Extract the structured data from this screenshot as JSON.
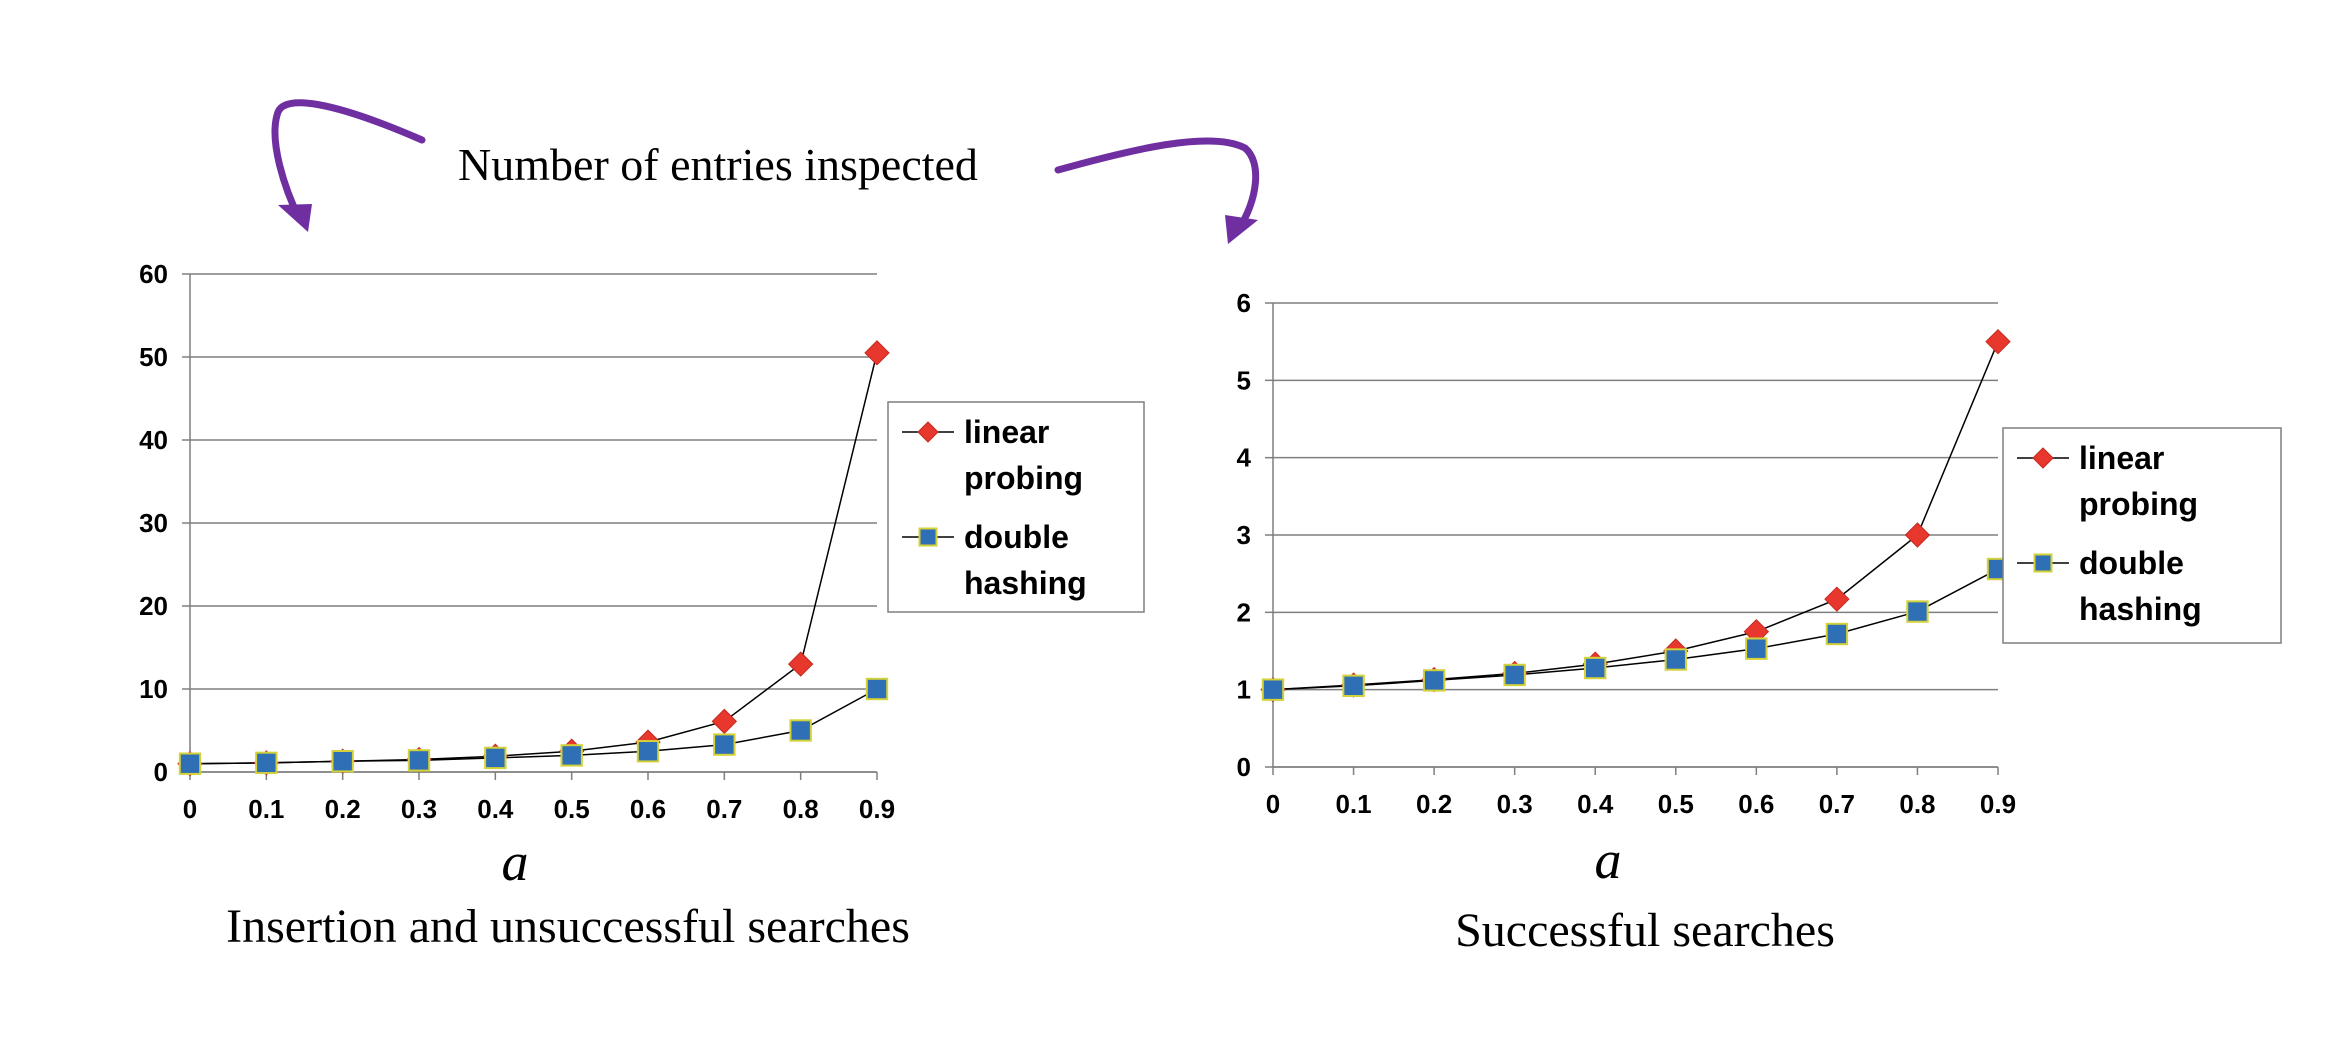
{
  "annotation": {
    "text": "Number of entries inspected",
    "arrow_color": "#6f2fa0"
  },
  "chart_data": [
    {
      "type": "line",
      "title": "Insertion and unsuccessful searches",
      "xlabel": "a",
      "ylabel": "",
      "categories": [
        "0",
        "0.1",
        "0.2",
        "0.3",
        "0.4",
        "0.5",
        "0.6",
        "0.7",
        "0.8",
        "0.9"
      ],
      "x": [
        0,
        0.1,
        0.2,
        0.3,
        0.4,
        0.5,
        0.6,
        0.7,
        0.8,
        0.9
      ],
      "ylim": [
        0,
        60
      ],
      "yticks": [
        "0",
        "10",
        "20",
        "30",
        "40",
        "50",
        "60"
      ],
      "grid": true,
      "legend_position": "right",
      "series": [
        {
          "name": "linear probing",
          "legend_lines": [
            "linear",
            "probing"
          ],
          "marker": "diamond",
          "color": "#e8372c",
          "values": [
            1,
            1.1,
            1.3,
            1.5,
            1.9,
            2.5,
            3.6,
            6.1,
            13,
            50.5
          ]
        },
        {
          "name": "double hashing",
          "legend_lines": [
            "double",
            "hashing"
          ],
          "marker": "square",
          "color": "#2f6fb5",
          "values": [
            1,
            1.1,
            1.3,
            1.4,
            1.7,
            2,
            2.5,
            3.3,
            5,
            10
          ]
        }
      ]
    },
    {
      "type": "line",
      "title": "Successful searches",
      "xlabel": "a",
      "ylabel": "",
      "categories": [
        "0",
        "0.1",
        "0.2",
        "0.3",
        "0.4",
        "0.5",
        "0.6",
        "0.7",
        "0.8",
        "0.9"
      ],
      "x": [
        0,
        0.1,
        0.2,
        0.3,
        0.4,
        0.5,
        0.6,
        0.7,
        0.8,
        0.9
      ],
      "ylim": [
        0,
        6
      ],
      "yticks": [
        "0",
        "1",
        "2",
        "3",
        "4",
        "5",
        "6"
      ],
      "grid": true,
      "legend_position": "right",
      "series": [
        {
          "name": "linear probing",
          "legend_lines": [
            "linear",
            "probing"
          ],
          "marker": "diamond",
          "color": "#e8372c",
          "values": [
            1,
            1.06,
            1.13,
            1.21,
            1.33,
            1.5,
            1.75,
            2.17,
            3,
            5.5
          ]
        },
        {
          "name": "double hashing",
          "legend_lines": [
            "double",
            "hashing"
          ],
          "marker": "square",
          "color": "#2f6fb5",
          "values": [
            1,
            1.05,
            1.12,
            1.19,
            1.28,
            1.39,
            1.53,
            1.72,
            2.01,
            2.56
          ]
        }
      ]
    }
  ]
}
